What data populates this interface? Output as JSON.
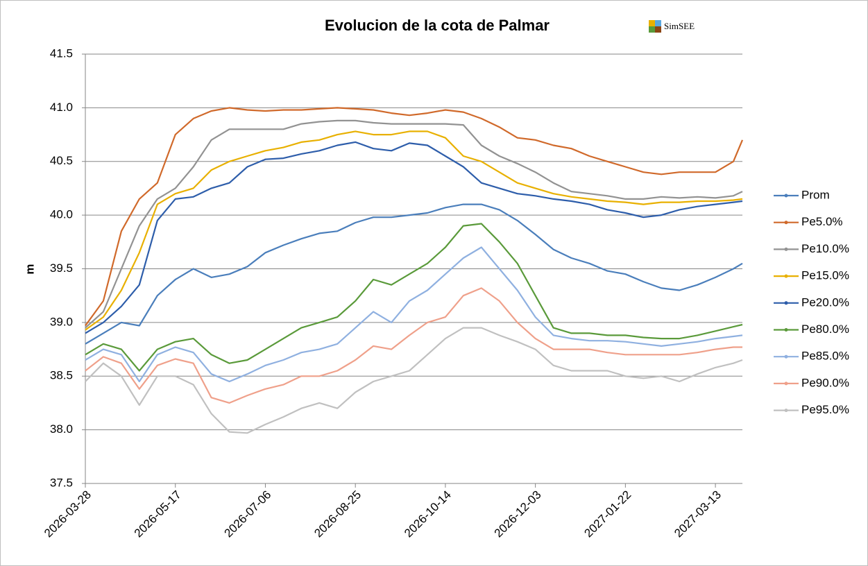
{
  "chart_data": {
    "type": "line",
    "title": "Evolucion de la cota de Palmar",
    "logo": "SimSEE",
    "y_label": "m",
    "x": [
      "2026-03-28",
      "2026-04-07",
      "2026-04-17",
      "2026-04-27",
      "2026-05-07",
      "2026-05-17",
      "2026-05-27",
      "2026-06-06",
      "2026-06-16",
      "2026-06-26",
      "2026-07-06",
      "2026-07-16",
      "2026-07-26",
      "2026-08-05",
      "2026-08-15",
      "2026-08-25",
      "2026-09-04",
      "2026-09-14",
      "2026-09-24",
      "2026-10-04",
      "2026-10-14",
      "2026-10-24",
      "2026-11-03",
      "2026-11-13",
      "2026-11-23",
      "2026-12-03",
      "2026-12-13",
      "2026-12-23",
      "2027-01-02",
      "2027-01-12",
      "2027-01-22",
      "2027-02-01",
      "2027-02-11",
      "2027-02-21",
      "2027-03-03",
      "2027-03-13",
      "2027-03-23",
      "2027-03-28"
    ],
    "xlim": [
      "2026-03-28",
      "2027-03-28"
    ],
    "xticks": [
      "2026-03-28",
      "2026-05-17",
      "2026-07-06",
      "2026-08-25",
      "2026-10-14",
      "2026-12-03",
      "2027-01-22",
      "2027-03-13"
    ],
    "ylim": [
      37.5,
      41.5
    ],
    "yticks": [
      37.5,
      {
        "value": 38,
        "label": "38.0"
      },
      38.5,
      {
        "value": 39,
        "label": "39.0"
      },
      39.5,
      {
        "value": 40,
        "label": "40.0"
      },
      40.5,
      {
        "value": 41,
        "label": "41.0"
      },
      41.5
    ],
    "grid": true,
    "legend": "right",
    "series": [
      {
        "name": "Prom",
        "color": "#4a7ebb",
        "values": [
          38.8,
          38.9,
          39.0,
          38.97,
          39.25,
          39.4,
          39.5,
          39.42,
          39.45,
          39.52,
          39.65,
          39.72,
          39.78,
          39.83,
          39.85,
          39.93,
          39.98,
          39.98,
          40.0,
          40.02,
          40.07,
          40.1,
          40.1,
          40.05,
          39.95,
          39.82,
          39.68,
          39.6,
          39.55,
          39.48,
          39.45,
          39.38,
          39.32,
          39.3,
          39.35,
          39.42,
          39.5,
          39.55
        ]
      },
      {
        "name": "Pe5.0%",
        "color": "#d0692a",
        "values": [
          38.97,
          39.2,
          39.85,
          40.15,
          40.3,
          40.75,
          40.9,
          40.97,
          41.0,
          40.98,
          40.97,
          40.98,
          40.98,
          40.99,
          41.0,
          40.99,
          40.98,
          40.95,
          40.93,
          40.95,
          40.98,
          40.96,
          40.9,
          40.82,
          40.72,
          40.7,
          40.65,
          40.62,
          40.55,
          40.5,
          40.45,
          40.4,
          40.38,
          40.4,
          40.4,
          40.4,
          40.5,
          40.7
        ]
      },
      {
        "name": "Pe10.0%",
        "color": "#929292",
        "values": [
          38.95,
          39.1,
          39.5,
          39.9,
          40.15,
          40.25,
          40.45,
          40.7,
          40.8,
          40.8,
          40.8,
          40.8,
          40.85,
          40.87,
          40.88,
          40.88,
          40.86,
          40.85,
          40.85,
          40.85,
          40.85,
          40.84,
          40.65,
          40.55,
          40.48,
          40.4,
          40.3,
          40.22,
          40.2,
          40.18,
          40.15,
          40.15,
          40.17,
          40.16,
          40.17,
          40.16,
          40.18,
          40.22
        ]
      },
      {
        "name": "Pe15.0%",
        "color": "#e8b000",
        "values": [
          38.93,
          39.05,
          39.3,
          39.65,
          40.1,
          40.2,
          40.25,
          40.42,
          40.5,
          40.55,
          40.6,
          40.63,
          40.68,
          40.7,
          40.75,
          40.78,
          40.75,
          40.75,
          40.78,
          40.78,
          40.72,
          40.55,
          40.5,
          40.4,
          40.3,
          40.25,
          40.2,
          40.17,
          40.15,
          40.13,
          40.12,
          40.1,
          40.12,
          40.12,
          40.13,
          40.13,
          40.14,
          40.15
        ]
      },
      {
        "name": "Pe20.0%",
        "color": "#2d5daa",
        "values": [
          38.9,
          39.0,
          39.15,
          39.35,
          39.95,
          40.15,
          40.17,
          40.25,
          40.3,
          40.45,
          40.52,
          40.53,
          40.57,
          40.6,
          40.65,
          40.68,
          40.62,
          40.6,
          40.67,
          40.65,
          40.55,
          40.45,
          40.3,
          40.25,
          40.2,
          40.18,
          40.15,
          40.13,
          40.1,
          40.05,
          40.02,
          39.98,
          40.0,
          40.05,
          40.08,
          40.1,
          40.12,
          40.13
        ]
      },
      {
        "name": "Pe80.0%",
        "color": "#5a9a3a",
        "values": [
          38.7,
          38.8,
          38.75,
          38.55,
          38.75,
          38.82,
          38.85,
          38.7,
          38.62,
          38.65,
          38.75,
          38.85,
          38.95,
          39.0,
          39.05,
          39.2,
          39.4,
          39.35,
          39.45,
          39.55,
          39.7,
          39.9,
          39.92,
          39.75,
          39.55,
          39.25,
          38.95,
          38.9,
          38.9,
          38.88,
          38.88,
          38.86,
          38.85,
          38.85,
          38.88,
          38.92,
          38.96,
          38.98
        ]
      },
      {
        "name": "Pe85.0%",
        "color": "#8fb0e0",
        "values": [
          38.65,
          38.75,
          38.7,
          38.45,
          38.7,
          38.77,
          38.72,
          38.52,
          38.45,
          38.52,
          38.6,
          38.65,
          38.72,
          38.75,
          38.8,
          38.95,
          39.1,
          39.0,
          39.2,
          39.3,
          39.45,
          39.6,
          39.7,
          39.5,
          39.3,
          39.05,
          38.88,
          38.85,
          38.83,
          38.83,
          38.82,
          38.8,
          38.78,
          38.8,
          38.82,
          38.85,
          38.87,
          38.88
        ]
      },
      {
        "name": "Pe90.0%",
        "color": "#efa08a",
        "values": [
          38.55,
          38.68,
          38.62,
          38.38,
          38.6,
          38.66,
          38.62,
          38.3,
          38.25,
          38.32,
          38.38,
          38.42,
          38.5,
          38.5,
          38.55,
          38.65,
          38.78,
          38.75,
          38.88,
          39.0,
          39.05,
          39.25,
          39.32,
          39.2,
          39.0,
          38.85,
          38.75,
          38.75,
          38.75,
          38.72,
          38.7,
          38.7,
          38.7,
          38.7,
          38.72,
          38.75,
          38.77,
          38.77
        ]
      },
      {
        "name": "Pe95.0%",
        "color": "#c0c0c0",
        "values": [
          38.45,
          38.62,
          38.5,
          38.23,
          38.5,
          38.5,
          38.42,
          38.15,
          37.98,
          37.97,
          38.05,
          38.12,
          38.2,
          38.25,
          38.2,
          38.35,
          38.45,
          38.5,
          38.55,
          38.7,
          38.85,
          38.95,
          38.95,
          38.88,
          38.82,
          38.75,
          38.6,
          38.55,
          38.55,
          38.55,
          38.5,
          38.48,
          38.5,
          38.45,
          38.52,
          38.58,
          38.62,
          38.65
        ]
      }
    ]
  }
}
